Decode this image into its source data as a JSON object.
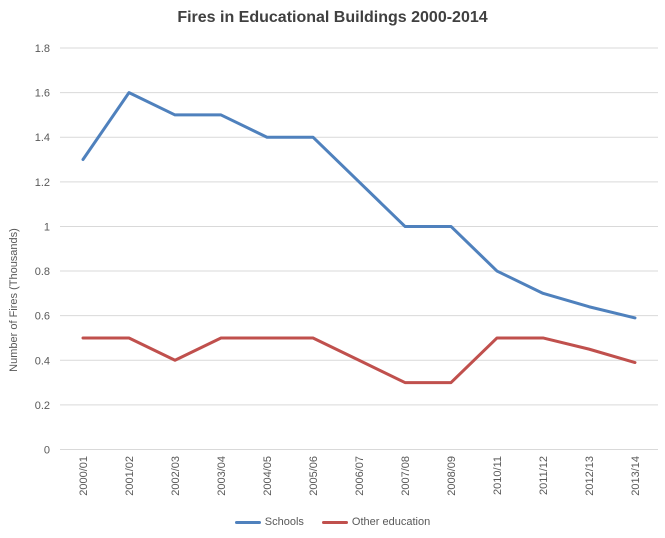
{
  "chart_data": {
    "type": "line",
    "title": "Fires in Educational Buildings 2000-2014",
    "xlabel": "",
    "ylabel": "Number of Fires (Thousands)",
    "categories": [
      "2000/01",
      "2001/02",
      "2002/03",
      "2003/04",
      "2004/05",
      "2005/06",
      "2006/07",
      "2007/08",
      "2008/09",
      "2010/11",
      "2011/12",
      "2012/13",
      "2013/14"
    ],
    "series": [
      {
        "name": "Schools",
        "color": "#4F81BD",
        "values": [
          1.3,
          1.6,
          1.5,
          1.5,
          1.4,
          1.4,
          1.2,
          1.0,
          1.0,
          0.8,
          0.7,
          0.64,
          0.59
        ]
      },
      {
        "name": "Other education",
        "color": "#C0504D",
        "values": [
          0.5,
          0.5,
          0.4,
          0.5,
          0.5,
          0.5,
          0.4,
          0.3,
          0.3,
          0.5,
          0.5,
          0.45,
          0.39
        ]
      }
    ],
    "ylim": [
      0,
      1.8
    ],
    "y_ticks": [
      {
        "value": 0,
        "label": "0"
      },
      {
        "value": 0.2,
        "label": "0.2"
      },
      {
        "value": 0.4,
        "label": "0.4"
      },
      {
        "value": 0.6,
        "label": "0.6"
      },
      {
        "value": 0.8,
        "label": "0.8"
      },
      {
        "value": 1,
        "label": "1"
      },
      {
        "value": 1.2,
        "label": "1.2"
      },
      {
        "value": 1.4,
        "label": "1.4"
      },
      {
        "value": 1.6,
        "label": "1.6"
      },
      {
        "value": 1.8,
        "label": "1.8"
      }
    ],
    "grid": true,
    "legend_position": "bottom",
    "colors": {
      "gridline": "#D9D9D9",
      "tick_text": "#595959",
      "title_text": "#404040",
      "background": "#FFFFFF"
    }
  }
}
